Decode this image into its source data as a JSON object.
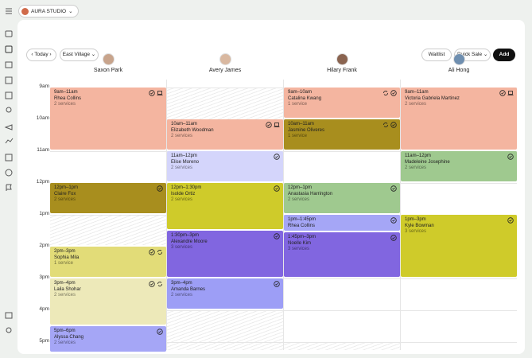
{
  "top_bar": {
    "studio": "AURA STUDIO"
  },
  "toolbar": {
    "today": "Today",
    "location": "East Village",
    "waitlist": "Waitlist",
    "quick_sale": "Quick Sale",
    "add": "Add"
  },
  "staff": [
    "Saxon Park",
    "Avery James",
    "Hilary Frank",
    "Ali Hong"
  ],
  "hours": [
    "9am",
    "10am",
    "11am",
    "12pm",
    "1pm",
    "2pm",
    "3pm",
    "4pm",
    "5pm"
  ],
  "appointments": [
    {
      "time": "9am–11am",
      "client": "Rhea Collins",
      "services": "2 services"
    },
    {
      "time": "12pm–1pm",
      "client": "Claire Fox",
      "services": "2 services"
    },
    {
      "time": "2pm–3pm",
      "client": "Sophia Mila",
      "services": "1 service"
    },
    {
      "time": "3pm–4pm",
      "client": "Laila Shohar",
      "services": "2 services"
    },
    {
      "time": "5pm–6pm",
      "client": "Alyssa Chang",
      "services": "2 services"
    },
    {
      "time": "10am–11am",
      "client": "Elizabeth Woodman",
      "services": "2 services"
    },
    {
      "time": "11am–12pm",
      "client": "Elise Moreno",
      "services": "2 services"
    },
    {
      "time": "12pm–1:30pm",
      "client": "Isolde Ortiz",
      "services": "2 services"
    },
    {
      "time": "1:30pm–3pm",
      "client": "Alexandre Moore",
      "services": "3 services"
    },
    {
      "time": "3pm–4pm",
      "client": "Amanda Barnes",
      "services": "2 services"
    },
    {
      "time": "9am–10am",
      "client": "Catalina Kwang",
      "services": "1 service"
    },
    {
      "time": "10am–11am",
      "client": "Jasmine Oliveres",
      "services": "1 service"
    },
    {
      "time": "12pm–1pm",
      "client": "Anastasia Harrington",
      "services": "2 services"
    },
    {
      "time": "1pm–1:45pm",
      "client": "Rhea Collins"
    },
    {
      "time": "1:45pm–3pm",
      "client": "Noelle Kim",
      "services": "3 services"
    },
    {
      "time": "9am–11am",
      "client": "Victoria Gabriela Martinez",
      "services": "2 services"
    },
    {
      "time": "11am–12pm",
      "client": "Madeleine Josephine",
      "services": "2 services"
    },
    {
      "time": "1pm–3pm",
      "client": "Kyle Bowman",
      "services": "3 services"
    }
  ]
}
